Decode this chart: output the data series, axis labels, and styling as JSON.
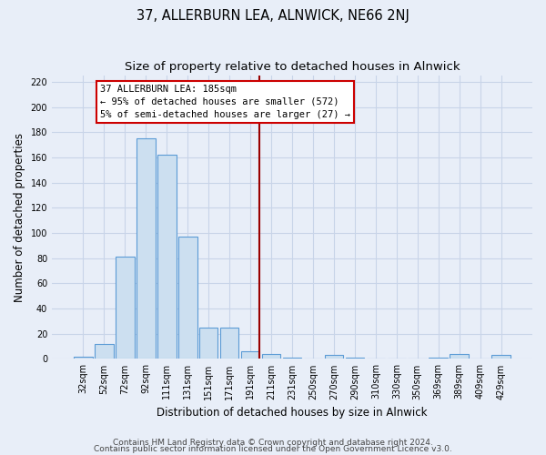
{
  "title": "37, ALLERBURN LEA, ALNWICK, NE66 2NJ",
  "subtitle": "Size of property relative to detached houses in Alnwick",
  "xlabel": "Distribution of detached houses by size in Alnwick",
  "ylabel": "Number of detached properties",
  "bar_labels": [
    "32sqm",
    "52sqm",
    "72sqm",
    "92sqm",
    "111sqm",
    "131sqm",
    "151sqm",
    "171sqm",
    "191sqm",
    "211sqm",
    "231sqm",
    "250sqm",
    "270sqm",
    "290sqm",
    "310sqm",
    "330sqm",
    "350sqm",
    "369sqm",
    "389sqm",
    "409sqm",
    "429sqm"
  ],
  "bar_values": [
    2,
    12,
    81,
    175,
    162,
    97,
    25,
    25,
    6,
    4,
    1,
    0,
    3,
    1,
    0,
    0,
    0,
    1,
    4,
    0,
    3
  ],
  "bar_color": "#ccdff0",
  "bar_edge_color": "#5b9bd5",
  "vline_index": 8,
  "vline_color": "#990000",
  "annotation_text": "37 ALLERBURN LEA: 185sqm\n← 95% of detached houses are smaller (572)\n5% of semi-detached houses are larger (27) →",
  "annotation_box_color": "#ffffff",
  "annotation_box_edge": "#cc0000",
  "ylim": [
    0,
    225
  ],
  "yticks": [
    0,
    20,
    40,
    60,
    80,
    100,
    120,
    140,
    160,
    180,
    200,
    220
  ],
  "footnote1": "Contains HM Land Registry data © Crown copyright and database right 2024.",
  "footnote2": "Contains public sector information licensed under the Open Government Licence v3.0.",
  "bg_color": "#e8eef8",
  "plot_bg_color": "#e8eef8",
  "grid_color": "#c8d4e8",
  "title_fontsize": 10.5,
  "subtitle_fontsize": 9.5,
  "axis_label_fontsize": 8.5,
  "tick_fontsize": 7,
  "footnote_fontsize": 6.5,
  "ann_text_fontsize": 7.5
}
